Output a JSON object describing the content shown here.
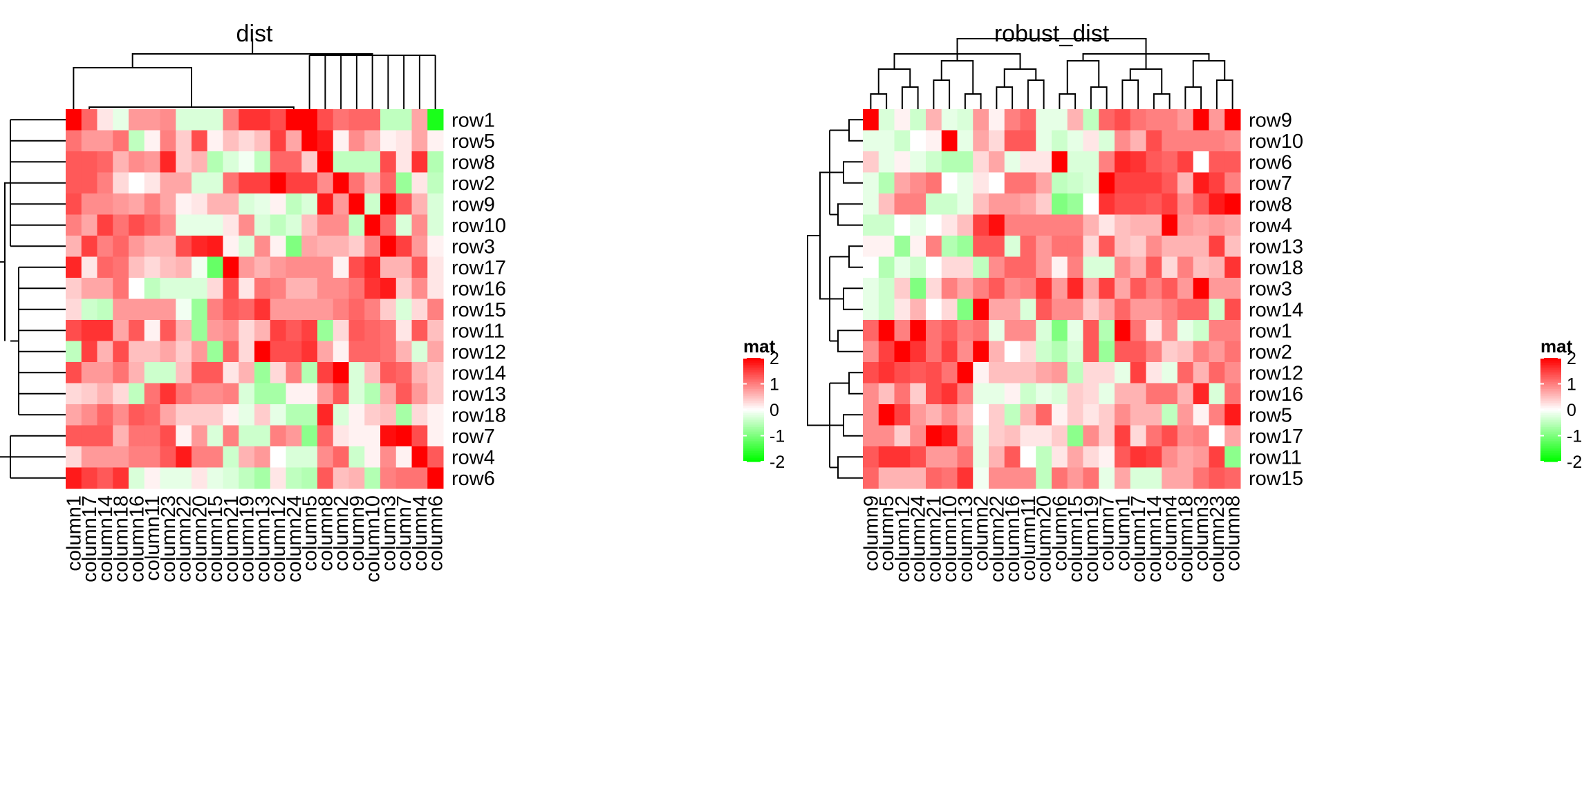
{
  "chart_data": [
    {
      "type": "heatmap",
      "title": "dist",
      "rows": [
        "row1",
        "row5",
        "row8",
        "row2",
        "row9",
        "row10",
        "row3",
        "row17",
        "row16",
        "row15",
        "row11",
        "row12",
        "row14",
        "row13",
        "row18",
        "row7",
        "row4",
        "row6"
      ],
      "columns": [
        "column1",
        "column17",
        "column14",
        "column18",
        "column16",
        "column11",
        "column23",
        "column22",
        "column20",
        "column15",
        "column21",
        "column19",
        "column13",
        "column12",
        "column24",
        "column5",
        "column8",
        "column2",
        "column9",
        "column10",
        "column3",
        "column7",
        "column4",
        "column6"
      ],
      "values": [
        [
          2.0,
          1.2,
          0.2,
          -0.2,
          0.8,
          0.8,
          0.9,
          -0.3,
          -0.3,
          -0.3,
          1.0,
          1.6,
          1.6,
          1.4,
          2.0,
          2.0,
          1.4,
          1.1,
          1.2,
          1.2,
          -0.5,
          -0.5,
          0.7,
          -1.8
        ],
        [
          1.1,
          0.8,
          0.8,
          1.1,
          -0.5,
          0.1,
          1.0,
          0.4,
          1.4,
          0.1,
          0.5,
          0.3,
          0.5,
          1.5,
          0.7,
          2.0,
          1.8,
          0.1,
          0.9,
          0.6,
          0.1,
          0.2,
          0.7,
          0.1
        ],
        [
          1.3,
          1.3,
          1.2,
          0.6,
          0.9,
          0.8,
          1.7,
          0.4,
          0.6,
          -0.6,
          -0.3,
          -0.1,
          -0.5,
          1.2,
          1.2,
          0.4,
          2.0,
          -0.5,
          -0.5,
          -0.5,
          1.4,
          0.2,
          1.6,
          -0.6
        ],
        [
          1.3,
          1.3,
          1.0,
          0.3,
          0.0,
          0.2,
          0.7,
          0.7,
          -0.3,
          -0.3,
          1.1,
          1.5,
          1.5,
          2.0,
          1.5,
          1.5,
          0.9,
          2.0,
          1.1,
          0.6,
          1.2,
          -0.8,
          0.2,
          -0.5
        ],
        [
          1.4,
          0.9,
          0.9,
          0.8,
          0.7,
          1.0,
          0.7,
          0.1,
          0.2,
          0.6,
          0.6,
          -0.3,
          -0.2,
          0.1,
          -0.5,
          -0.3,
          1.8,
          0.8,
          2.0,
          -0.4,
          2.0,
          1.3,
          0.6,
          -0.3
        ],
        [
          1.0,
          0.7,
          1.5,
          1.1,
          1.4,
          1.2,
          0.9,
          -0.2,
          -0.2,
          -0.2,
          0.2,
          0.9,
          -0.3,
          -0.5,
          -0.3,
          0.5,
          0.9,
          0.9,
          -0.5,
          2.0,
          1.2,
          -0.3,
          0.9,
          -0.3
        ],
        [
          0.6,
          1.5,
          1.0,
          1.2,
          0.8,
          0.6,
          0.6,
          1.4,
          1.7,
          1.8,
          0.1,
          -0.3,
          0.9,
          0.1,
          -1.0,
          0.7,
          0.6,
          0.6,
          0.4,
          1.0,
          2.0,
          1.5,
          0.8,
          0.1
        ],
        [
          1.7,
          0.2,
          1.2,
          1.1,
          0.5,
          0.3,
          0.5,
          0.6,
          -0.1,
          -1.2,
          2.0,
          0.8,
          0.6,
          0.8,
          0.9,
          0.9,
          0.9,
          0.1,
          1.4,
          1.7,
          0.6,
          0.6,
          1.3,
          0.2
        ],
        [
          0.4,
          0.7,
          0.7,
          1.1,
          0.0,
          -0.5,
          -0.3,
          -0.3,
          -0.3,
          0.3,
          1.4,
          0.2,
          1.1,
          1.0,
          0.6,
          0.6,
          0.9,
          0.9,
          1.1,
          1.6,
          1.8,
          0.4,
          0.9,
          0.2
        ],
        [
          0.3,
          -0.4,
          -0.5,
          0.8,
          0.8,
          0.8,
          0.8,
          -0.1,
          -0.8,
          1.0,
          1.3,
          1.2,
          1.6,
          0.8,
          0.8,
          0.8,
          0.8,
          1.0,
          1.2,
          1.0,
          0.4,
          -0.3,
          0.3,
          1.0
        ],
        [
          1.4,
          1.6,
          1.6,
          0.7,
          1.3,
          0.1,
          1.3,
          0.6,
          -0.8,
          0.8,
          0.9,
          0.3,
          0.6,
          1.5,
          1.3,
          1.5,
          -0.8,
          0.3,
          1.3,
          1.2,
          1.1,
          0.2,
          1.3,
          0.5
        ],
        [
          -0.5,
          1.5,
          0.6,
          1.4,
          0.5,
          0.5,
          0.7,
          0.4,
          0.8,
          -0.8,
          1.2,
          0.3,
          2.0,
          1.4,
          1.4,
          1.6,
          0.7,
          0.1,
          1.2,
          1.2,
          1.1,
          0.6,
          -0.3,
          0.7
        ],
        [
          1.4,
          0.8,
          0.8,
          1.1,
          0.6,
          -0.4,
          -0.4,
          0.5,
          1.3,
          1.3,
          0.2,
          0.6,
          -0.8,
          0.3,
          1.0,
          -0.6,
          1.5,
          2.0,
          -0.3,
          0.5,
          1.3,
          1.2,
          0.6,
          0.4
        ],
        [
          0.3,
          0.4,
          0.6,
          0.3,
          -0.5,
          1.1,
          1.6,
          1.1,
          0.9,
          0.9,
          1.0,
          -0.3,
          -0.7,
          -0.7,
          0.1,
          0.1,
          0.8,
          1.3,
          -0.3,
          -0.6,
          0.7,
          1.3,
          0.8,
          0.4
        ],
        [
          0.7,
          0.9,
          1.2,
          0.9,
          1.3,
          1.2,
          0.7,
          0.4,
          0.4,
          0.4,
          0.1,
          -0.2,
          0.4,
          -0.2,
          -0.6,
          -0.6,
          1.7,
          -0.3,
          0.1,
          0.4,
          0.5,
          -0.7,
          0.3,
          0.1
        ],
        [
          1.3,
          1.3,
          1.3,
          0.6,
          1.1,
          1.1,
          1.4,
          0.1,
          0.8,
          -0.3,
          1.0,
          -0.4,
          -0.4,
          1.0,
          0.8,
          -0.9,
          1.2,
          0.2,
          0.1,
          0.1,
          1.9,
          2.0,
          1.4,
          0.1
        ],
        [
          0.3,
          0.8,
          0.8,
          0.8,
          1.0,
          1.0,
          1.3,
          1.8,
          1.0,
          1.0,
          -0.4,
          0.6,
          0.8,
          0.0,
          -0.3,
          -0.3,
          0.9,
          1.2,
          -0.4,
          0.1,
          0.9,
          0.1,
          2.0,
          1.3
        ],
        [
          1.8,
          1.5,
          1.3,
          1.6,
          -0.3,
          0.1,
          -0.2,
          -0.2,
          0.2,
          -0.2,
          -0.3,
          -0.5,
          -0.7,
          0.2,
          -0.5,
          -0.6,
          1.3,
          0.5,
          0.6,
          -0.6,
          1.0,
          1.1,
          1.1,
          2.0
        ]
      ],
      "legend": {
        "title": "mat",
        "ticks": [
          "2",
          "1",
          "0",
          "-1",
          "-2"
        ],
        "placement": "right"
      },
      "colors": {
        "low": "#00ff00",
        "mid": "#ffffff",
        "high": "#ff0000"
      },
      "value_range": [
        -2,
        2
      ]
    },
    {
      "type": "heatmap",
      "title": "robust_dist",
      "rows": [
        "row9",
        "row10",
        "row6",
        "row7",
        "row8",
        "row4",
        "row13",
        "row18",
        "row3",
        "row14",
        "row1",
        "row2",
        "row12",
        "row16",
        "row5",
        "row17",
        "row11",
        "row15"
      ],
      "columns": [
        "column9",
        "column5",
        "column12",
        "column24",
        "column21",
        "column10",
        "column13",
        "column2",
        "column22",
        "column16",
        "column11",
        "column20",
        "column6",
        "column15",
        "column19",
        "column7",
        "column1",
        "column17",
        "column14",
        "column4",
        "column18",
        "column3",
        "column23",
        "column8"
      ],
      "values": [
        [
          2.0,
          -0.3,
          0.1,
          -0.4,
          0.6,
          -0.2,
          -0.3,
          0.8,
          0.1,
          1.0,
          1.2,
          -0.2,
          -0.2,
          0.6,
          -0.5,
          1.2,
          1.4,
          1.1,
          1.0,
          1.0,
          0.8,
          2.0,
          0.8,
          2.0
        ],
        [
          -0.2,
          -0.2,
          -0.4,
          0.0,
          0.1,
          2.0,
          -0.2,
          0.7,
          0.3,
          1.3,
          1.3,
          -0.2,
          -0.4,
          -0.2,
          0.2,
          -0.3,
          0.9,
          0.6,
          1.4,
          1.0,
          1.0,
          1.0,
          1.0,
          0.9
        ],
        [
          0.4,
          -0.2,
          0.1,
          -0.2,
          -0.4,
          -0.6,
          -0.6,
          0.3,
          0.7,
          -0.2,
          0.2,
          0.2,
          2.0,
          -0.3,
          -0.3,
          1.0,
          1.7,
          1.6,
          1.3,
          1.2,
          1.5,
          0.0,
          1.3,
          1.3
        ],
        [
          -0.2,
          -0.6,
          0.7,
          0.9,
          1.1,
          0.0,
          -0.2,
          0.2,
          0.0,
          1.1,
          1.1,
          0.7,
          -0.5,
          -0.4,
          -0.3,
          2.0,
          1.5,
          1.5,
          1.5,
          1.3,
          0.6,
          1.8,
          1.5,
          1.0
        ],
        [
          -0.2,
          0.5,
          1.0,
          1.0,
          -0.4,
          -0.4,
          -0.2,
          0.5,
          0.8,
          0.8,
          0.7,
          0.4,
          -1.0,
          -0.8,
          0.0,
          1.6,
          1.4,
          1.4,
          1.3,
          1.5,
          0.9,
          1.3,
          1.8,
          2.0
        ],
        [
          -0.4,
          -0.4,
          0.0,
          -0.2,
          0.0,
          0.2,
          0.5,
          1.5,
          1.9,
          1.0,
          1.0,
          1.0,
          1.0,
          1.0,
          0.6,
          0.2,
          0.5,
          0.6,
          0.6,
          2.0,
          0.8,
          0.7,
          0.8,
          0.7
        ],
        [
          0.1,
          0.1,
          -0.8,
          0.1,
          1.0,
          -0.6,
          -0.8,
          1.3,
          1.3,
          -0.3,
          1.2,
          0.8,
          1.1,
          1.1,
          0.3,
          1.3,
          0.5,
          0.4,
          0.9,
          0.6,
          0.6,
          0.6,
          1.5,
          0.5
        ],
        [
          0.0,
          -0.6,
          -0.2,
          -0.4,
          0.0,
          0.3,
          0.3,
          -0.5,
          0.9,
          1.2,
          1.2,
          0.8,
          0.1,
          1.0,
          -0.3,
          -0.3,
          0.9,
          0.6,
          1.3,
          0.3,
          1.0,
          0.5,
          0.6,
          1.6
        ],
        [
          -0.2,
          -0.4,
          0.4,
          -1.0,
          0.3,
          1.0,
          0.7,
          1.0,
          1.3,
          0.9,
          1.0,
          1.6,
          0.8,
          1.7,
          0.7,
          1.5,
          0.7,
          1.3,
          1.0,
          1.3,
          0.8,
          2.0,
          0.8,
          0.8
        ],
        [
          -0.2,
          -0.4,
          0.2,
          0.6,
          0.0,
          0.3,
          -1.0,
          2.0,
          0.7,
          0.7,
          -0.3,
          1.3,
          0.9,
          0.9,
          0.4,
          0.7,
          1.2,
          0.8,
          0.8,
          1.0,
          1.2,
          1.2,
          -0.4,
          1.4
        ],
        [
          1.2,
          2.0,
          1.0,
          2.0,
          1.1,
          1.3,
          1.0,
          1.1,
          -0.2,
          0.9,
          0.9,
          -0.3,
          -1.0,
          -0.2,
          1.3,
          -0.6,
          2.0,
          1.1,
          0.2,
          0.9,
          -0.2,
          -0.4,
          1.0,
          1.0
        ],
        [
          0.9,
          1.5,
          2.0,
          1.6,
          1.1,
          1.5,
          0.9,
          2.0,
          0.6,
          0.0,
          0.3,
          -0.4,
          -0.6,
          -0.3,
          1.3,
          -0.8,
          1.3,
          1.3,
          1.0,
          0.4,
          0.5,
          1.0,
          0.8,
          1.1
        ],
        [
          1.4,
          1.6,
          1.4,
          1.3,
          1.4,
          1.1,
          2.0,
          0.1,
          0.5,
          0.5,
          0.5,
          0.7,
          0.8,
          -0.5,
          0.3,
          0.3,
          -0.2,
          1.5,
          0.2,
          -0.2,
          1.2,
          0.6,
          1.2,
          0.9
        ],
        [
          0.9,
          0.5,
          1.1,
          0.4,
          1.4,
          1.6,
          1.0,
          -0.2,
          -0.2,
          0.1,
          -0.4,
          -0.2,
          -0.3,
          0.4,
          0.3,
          -0.2,
          0.6,
          0.6,
          1.1,
          1.1,
          0.6,
          1.7,
          -0.3,
          1.1
        ],
        [
          0.9,
          2.0,
          1.5,
          0.8,
          0.6,
          0.9,
          0.6,
          0.0,
          0.4,
          -0.5,
          0.6,
          1.2,
          0.1,
          0.4,
          0.2,
          0.4,
          0.9,
          0.6,
          0.6,
          -0.5,
          0.8,
          0.1,
          1.0,
          1.8
        ],
        [
          0.9,
          0.9,
          0.4,
          0.9,
          2.0,
          1.8,
          0.8,
          -0.2,
          0.4,
          0.5,
          0.2,
          0.2,
          0.4,
          -0.9,
          0.9,
          0.4,
          1.5,
          0.3,
          1.1,
          1.4,
          0.9,
          1.0,
          0.0,
          0.7
        ],
        [
          1.3,
          1.6,
          1.6,
          1.4,
          0.8,
          0.8,
          1.1,
          -0.2,
          0.6,
          1.3,
          0.0,
          -0.5,
          0.2,
          0.7,
          0.3,
          0.1,
          1.3,
          1.6,
          1.5,
          0.9,
          0.7,
          0.8,
          1.5,
          -0.9
        ],
        [
          1.2,
          0.6,
          0.6,
          0.6,
          1.2,
          1.1,
          1.6,
          -0.1,
          0.9,
          0.9,
          0.9,
          -0.5,
          1.1,
          0.8,
          1.1,
          -0.2,
          0.7,
          -0.3,
          -0.3,
          0.7,
          0.7,
          1.1,
          1.3,
          1.2
        ]
      ],
      "legend": {
        "title": "mat",
        "ticks": [
          "2",
          "1",
          "0",
          "-1",
          "-2"
        ],
        "placement": "right"
      },
      "colors": {
        "low": "#00ff00",
        "mid": "#ffffff",
        "high": "#ff0000"
      },
      "value_range": [
        -2,
        2
      ]
    }
  ]
}
